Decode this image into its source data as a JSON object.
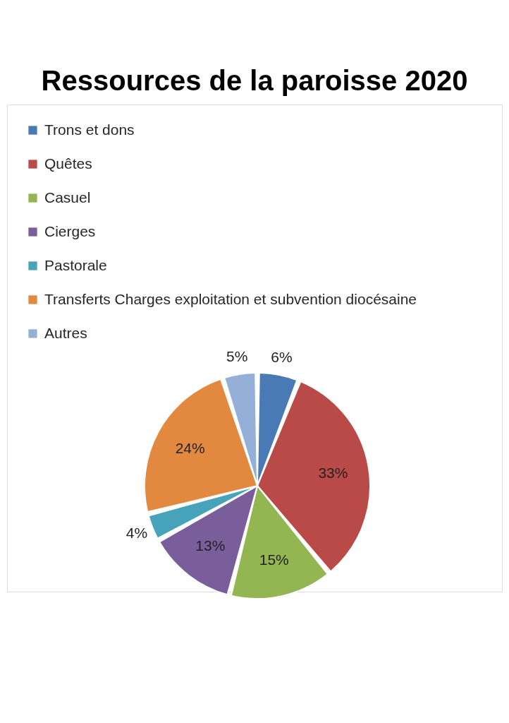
{
  "chart_data": {
    "type": "pie",
    "title": "Ressources de la paroisse 2020",
    "categories": [
      "Trons et dons",
      "Quêtes",
      "Casuel",
      "Cierges",
      "Pastorale",
      "Transferts Charges exploitation et subvention diocésaine",
      "Autres"
    ],
    "values": [
      6,
      33,
      15,
      13,
      4,
      24,
      5
    ],
    "colors": [
      "#4a7ab5",
      "#b94a48",
      "#93b552",
      "#7a5e9c",
      "#46a3b9",
      "#e3893f",
      "#95b0d8"
    ],
    "value_labels": [
      "6%",
      "33%",
      "15%",
      "13%",
      "4%",
      "24%",
      "5%"
    ],
    "legend": "top left"
  }
}
